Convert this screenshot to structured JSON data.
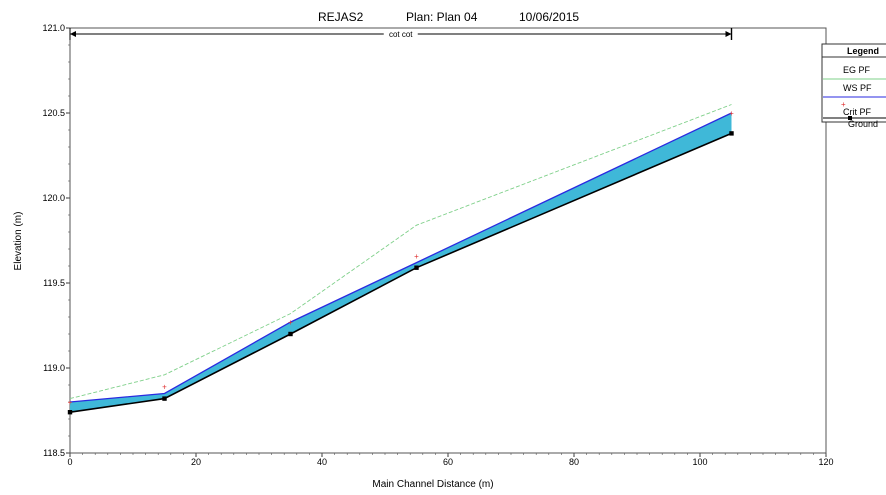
{
  "window": {
    "title_name": "REJAS2",
    "plan_label": "Plan: Plan 04",
    "date": "10/06/2015"
  },
  "reach_label": "cot cot",
  "legend": {
    "title": "Legend",
    "items": [
      "EG PF",
      "WS PF",
      "Crit PF",
      "Ground"
    ]
  },
  "colors": {
    "eg": "#7fd08a",
    "ws": "#2a2ae0",
    "crit": "#e03030",
    "ground": "#000000",
    "water_fill": "#3fb8d8"
  },
  "chart_data": {
    "type": "line",
    "title": "REJAS2      Plan: Plan 04     10/06/2015",
    "xlabel": "Main Channel Distance (m)",
    "ylabel": "Elevation (m)",
    "xlim": [
      0,
      120
    ],
    "ylim": [
      118.5,
      121.0
    ],
    "xticks": [
      0,
      20,
      40,
      60,
      80,
      100,
      120
    ],
    "yticks": [
      118.5,
      119.0,
      119.5,
      120.0,
      120.5,
      121.0
    ],
    "reach_extent": [
      0,
      105
    ],
    "series": [
      {
        "name": "EG PF",
        "x": [
          0,
          15,
          35,
          55,
          105
        ],
        "y": [
          118.82,
          118.96,
          119.32,
          119.84,
          120.55
        ]
      },
      {
        "name": "WS PF",
        "x": [
          0,
          15,
          35,
          55,
          105
        ],
        "y": [
          118.8,
          118.85,
          119.27,
          119.62,
          120.5
        ]
      },
      {
        "name": "Crit PF",
        "x": [
          0,
          15,
          35,
          55,
          105
        ],
        "y": [
          118.8,
          118.89,
          119.27,
          119.66,
          120.5
        ]
      },
      {
        "name": "Ground",
        "x": [
          0,
          15,
          35,
          55,
          105
        ],
        "y": [
          118.74,
          118.82,
          119.2,
          119.59,
          120.38
        ]
      }
    ]
  }
}
